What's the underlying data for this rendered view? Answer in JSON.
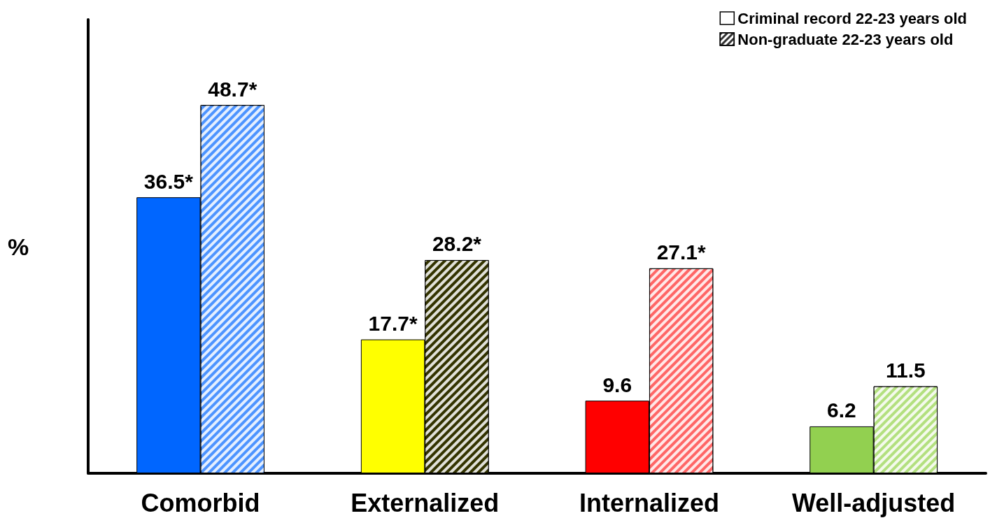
{
  "chart_data": {
    "type": "bar",
    "ylabel": "%",
    "categories": [
      "Comorbid",
      "Externalized",
      "Internalized",
      "Well-adjusted"
    ],
    "ylim": [
      0,
      60
    ],
    "legend": "top right",
    "grid": false,
    "series": [
      {
        "name": "Criminal record 22-23 years old",
        "color": "#ffffff",
        "colors": [
          "#0066ff",
          "#ffff00",
          "#ff0000",
          "#92d050"
        ],
        "values": [
          36.5,
          17.7,
          9.6,
          6.2
        ],
        "value_labels": [
          "36.5*",
          "17.7*",
          "9.6",
          "6.2"
        ]
      },
      {
        "name": "Non-graduate 22-23 years old",
        "color": "#ffffff",
        "colors": [
          "#4d94ff",
          "#333300",
          "#ff6666",
          "#b3e07f"
        ],
        "values": [
          48.7,
          28.2,
          27.1,
          11.5
        ],
        "value_labels": [
          "48.7*",
          "28.2*",
          "27.1*",
          "11.5"
        ]
      }
    ]
  }
}
